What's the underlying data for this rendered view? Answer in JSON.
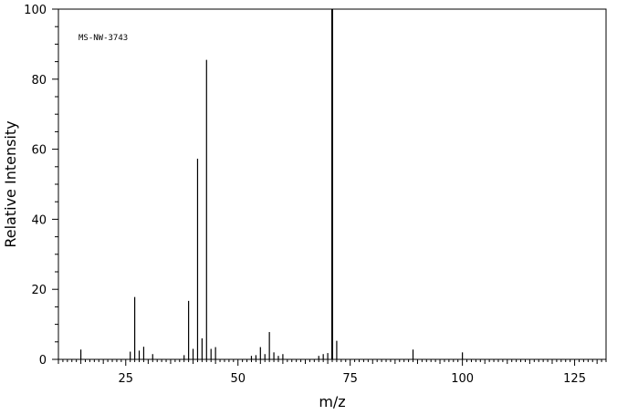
{
  "chart_data": {
    "type": "bar",
    "annotation": "MS-NW-3743",
    "xlabel": "m/z",
    "ylabel": "Relative Intensity",
    "xlim": [
      10,
      132
    ],
    "ylim": [
      0,
      100
    ],
    "x_major_ticks": [
      25,
      50,
      75,
      100,
      125
    ],
    "y_major_ticks": [
      0,
      20,
      40,
      60,
      80,
      100
    ],
    "grid": false,
    "legend": "none",
    "peaks": [
      {
        "mz": 15,
        "intensity": 2.8
      },
      {
        "mz": 26,
        "intensity": 2.2
      },
      {
        "mz": 27,
        "intensity": 17.8
      },
      {
        "mz": 28,
        "intensity": 2.5
      },
      {
        "mz": 29,
        "intensity": 3.6
      },
      {
        "mz": 31,
        "intensity": 1.5
      },
      {
        "mz": 38,
        "intensity": 1.2
      },
      {
        "mz": 39,
        "intensity": 16.7
      },
      {
        "mz": 40,
        "intensity": 3.0
      },
      {
        "mz": 41,
        "intensity": 57.3
      },
      {
        "mz": 42,
        "intensity": 6.0
      },
      {
        "mz": 43,
        "intensity": 85.5
      },
      {
        "mz": 44,
        "intensity": 3.0
      },
      {
        "mz": 45,
        "intensity": 3.5
      },
      {
        "mz": 53,
        "intensity": 1.0
      },
      {
        "mz": 54,
        "intensity": 1.2
      },
      {
        "mz": 55,
        "intensity": 3.5
      },
      {
        "mz": 56,
        "intensity": 1.5
      },
      {
        "mz": 57,
        "intensity": 7.8
      },
      {
        "mz": 58,
        "intensity": 2.0
      },
      {
        "mz": 59,
        "intensity": 1.0
      },
      {
        "mz": 60,
        "intensity": 1.5
      },
      {
        "mz": 68,
        "intensity": 1.0
      },
      {
        "mz": 69,
        "intensity": 1.5
      },
      {
        "mz": 70,
        "intensity": 1.8
      },
      {
        "mz": 71,
        "intensity": 100.0
      },
      {
        "mz": 72,
        "intensity": 5.3
      },
      {
        "mz": 89,
        "intensity": 2.8
      },
      {
        "mz": 100,
        "intensity": 2.0
      }
    ]
  }
}
